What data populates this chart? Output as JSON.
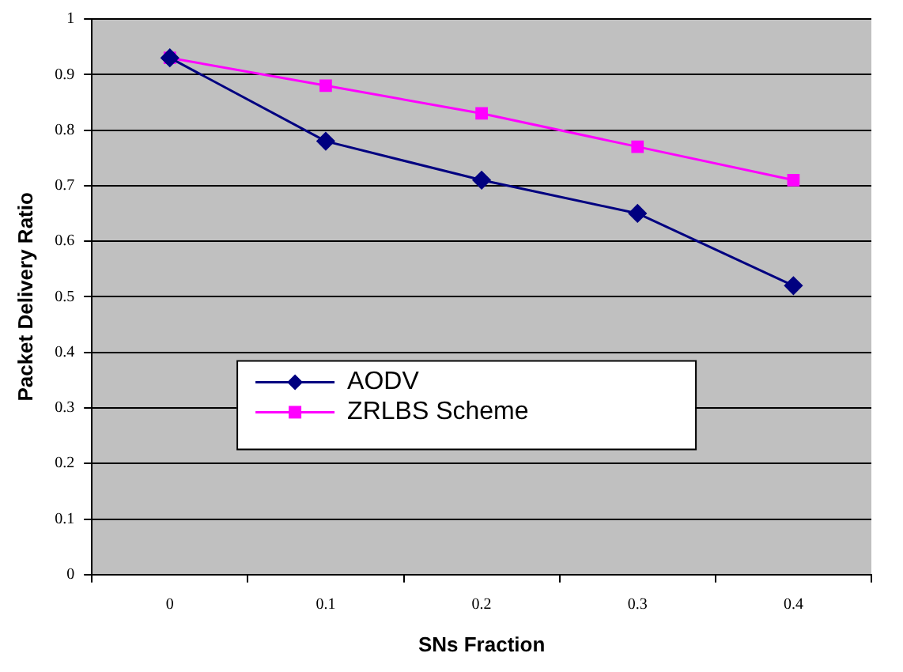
{
  "chart_data": {
    "type": "line",
    "xlabel": "SNs Fraction",
    "ylabel": "Packet Delivery Ratio",
    "categories": [
      "0",
      "0.1",
      "0.2",
      "0.3",
      "0.4"
    ],
    "series": [
      {
        "name": "AODV",
        "color": "#000080",
        "marker": "diamond",
        "values": [
          0.93,
          0.78,
          0.71,
          0.65,
          0.52
        ]
      },
      {
        "name": "ZRLBS Scheme",
        "color": "#ff00ff",
        "marker": "square",
        "values": [
          0.93,
          0.88,
          0.83,
          0.77,
          0.71
        ]
      }
    ],
    "ylim": [
      0,
      1
    ],
    "yticks": [
      0,
      0.1,
      0.2,
      0.3,
      0.4,
      0.5,
      0.6,
      0.7,
      0.8,
      0.9,
      1
    ],
    "grid": "y",
    "legend": "center",
    "line_style": "solid"
  }
}
